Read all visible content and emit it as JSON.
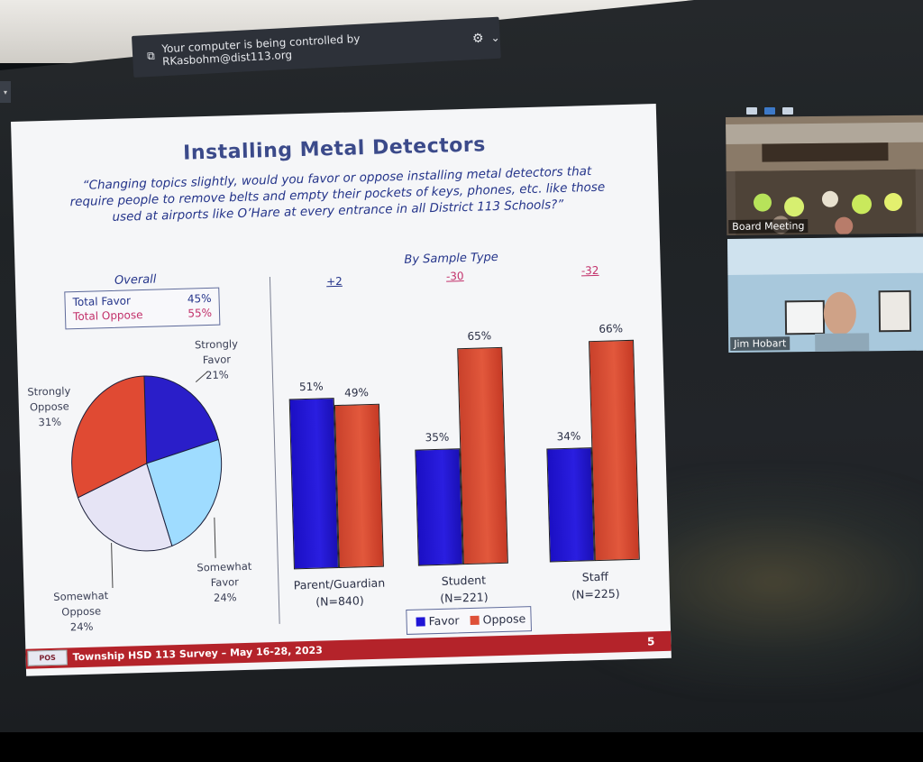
{
  "control_banner": {
    "text": "Your computer is being controlled by RKasbohm@dist113.org",
    "icon": "remote-control-icon",
    "settings_icon": "gear-icon",
    "menu_icon": "chevron-down-icon"
  },
  "slide": {
    "title": "Installing Metal Detectors",
    "quote": "“Changing topics slightly, would you favor or oppose installing metal detectors that require people to remove belts and empty their pockets of keys, phones, etc. like those used at airports like O’Hare at every entrance in all District 113 Schools?”",
    "overall": {
      "label": "Overall",
      "total_favor_label": "Total Favor",
      "total_favor_value": "45%",
      "total_oppose_label": "Total Oppose",
      "total_oppose_value": "55%"
    },
    "by_sample_label": "By Sample Type",
    "footer_text": "Township HSD 113 Survey – May 16-28, 2023",
    "footer_logo": "POS",
    "page_number": "5"
  },
  "chart_data": [
    {
      "type": "pie",
      "labels": [
        "Strongly Favor",
        "Somewhat Favor",
        "Somewhat Oppose",
        "Strongly Oppose"
      ],
      "values": [
        21,
        24,
        24,
        31
      ],
      "value_labels": [
        "21%",
        "24%",
        "24%",
        "31%"
      ],
      "colors": [
        "#2a1ec9",
        "#9fdcff",
        "#e6e4f5",
        "#e04a33"
      ]
    },
    {
      "type": "bar",
      "categories": [
        "Parent/Guardian",
        "Student",
        "Staff"
      ],
      "category_sublabels": [
        "(N=840)",
        "(N=221)",
        "(N=225)"
      ],
      "differences": [
        "+2",
        "-30",
        "-32"
      ],
      "series": [
        {
          "name": "Favor",
          "values": [
            51,
            35,
            34
          ],
          "color": "#1f14d6"
        },
        {
          "name": "Oppose",
          "values": [
            49,
            65,
            66
          ],
          "color": "#de5038"
        }
      ],
      "ylim": [
        0,
        100
      ]
    }
  ],
  "video": {
    "board_label": "Board Meeting",
    "jim_label": "Jim Hobart"
  }
}
